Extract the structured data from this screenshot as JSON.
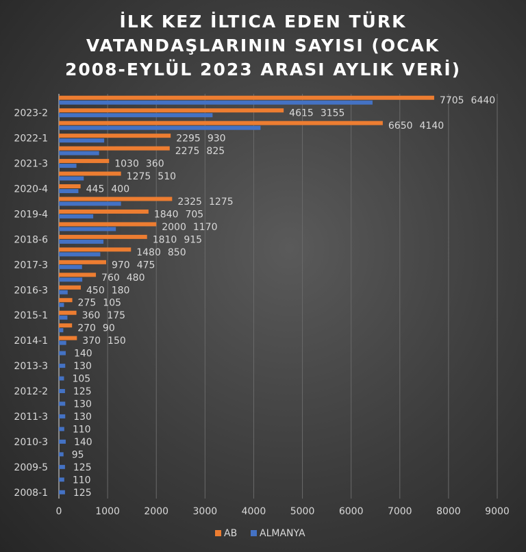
{
  "chart_data": {
    "type": "bar",
    "orientation": "horizontal",
    "title_lines": [
      "İLK KEZ İLTICA EDEN TÜRK",
      "VATANDAŞLARININ SAYISI (OCAK",
      "2008-EYLÜL 2023 ARASI AYLIK VERİ)"
    ],
    "categories": [
      "2008-1",
      "",
      "2009-5",
      "",
      "2010-3",
      "",
      "2011-3",
      "",
      "2012-2",
      "",
      "2013-3",
      "",
      "2014-1",
      "",
      "2015-1",
      "",
      "2016-3",
      "",
      "2017-3",
      "",
      "2018-6",
      "",
      "2019-4",
      "",
      "2020-4",
      "",
      "2021-3",
      "",
      "2022-1",
      "",
      "2023-2",
      ""
    ],
    "series": [
      {
        "name": "AB",
        "color": "#ED7D31",
        "values": [
          null,
          null,
          null,
          null,
          null,
          null,
          null,
          null,
          null,
          null,
          null,
          null,
          370,
          270,
          360,
          275,
          450,
          760,
          970,
          1480,
          1810,
          2000,
          1840,
          2325,
          445,
          1275,
          1030,
          2275,
          2295,
          6650,
          4615,
          7705
        ]
      },
      {
        "name": "ALMANYA",
        "color": "#4472C4",
        "values": [
          125,
          110,
          125,
          95,
          140,
          110,
          130,
          130,
          125,
          105,
          130,
          140,
          150,
          90,
          175,
          105,
          180,
          480,
          475,
          850,
          915,
          1170,
          705,
          1275,
          400,
          510,
          360,
          825,
          930,
          4140,
          3155,
          6440
        ]
      }
    ],
    "xlim": [
      0,
      9000
    ],
    "xticks": [
      "0",
      "1000",
      "2000",
      "3000",
      "4000",
      "5000",
      "6000",
      "7000",
      "8000",
      "9000"
    ],
    "grid": true,
    "legend": "bottom"
  }
}
